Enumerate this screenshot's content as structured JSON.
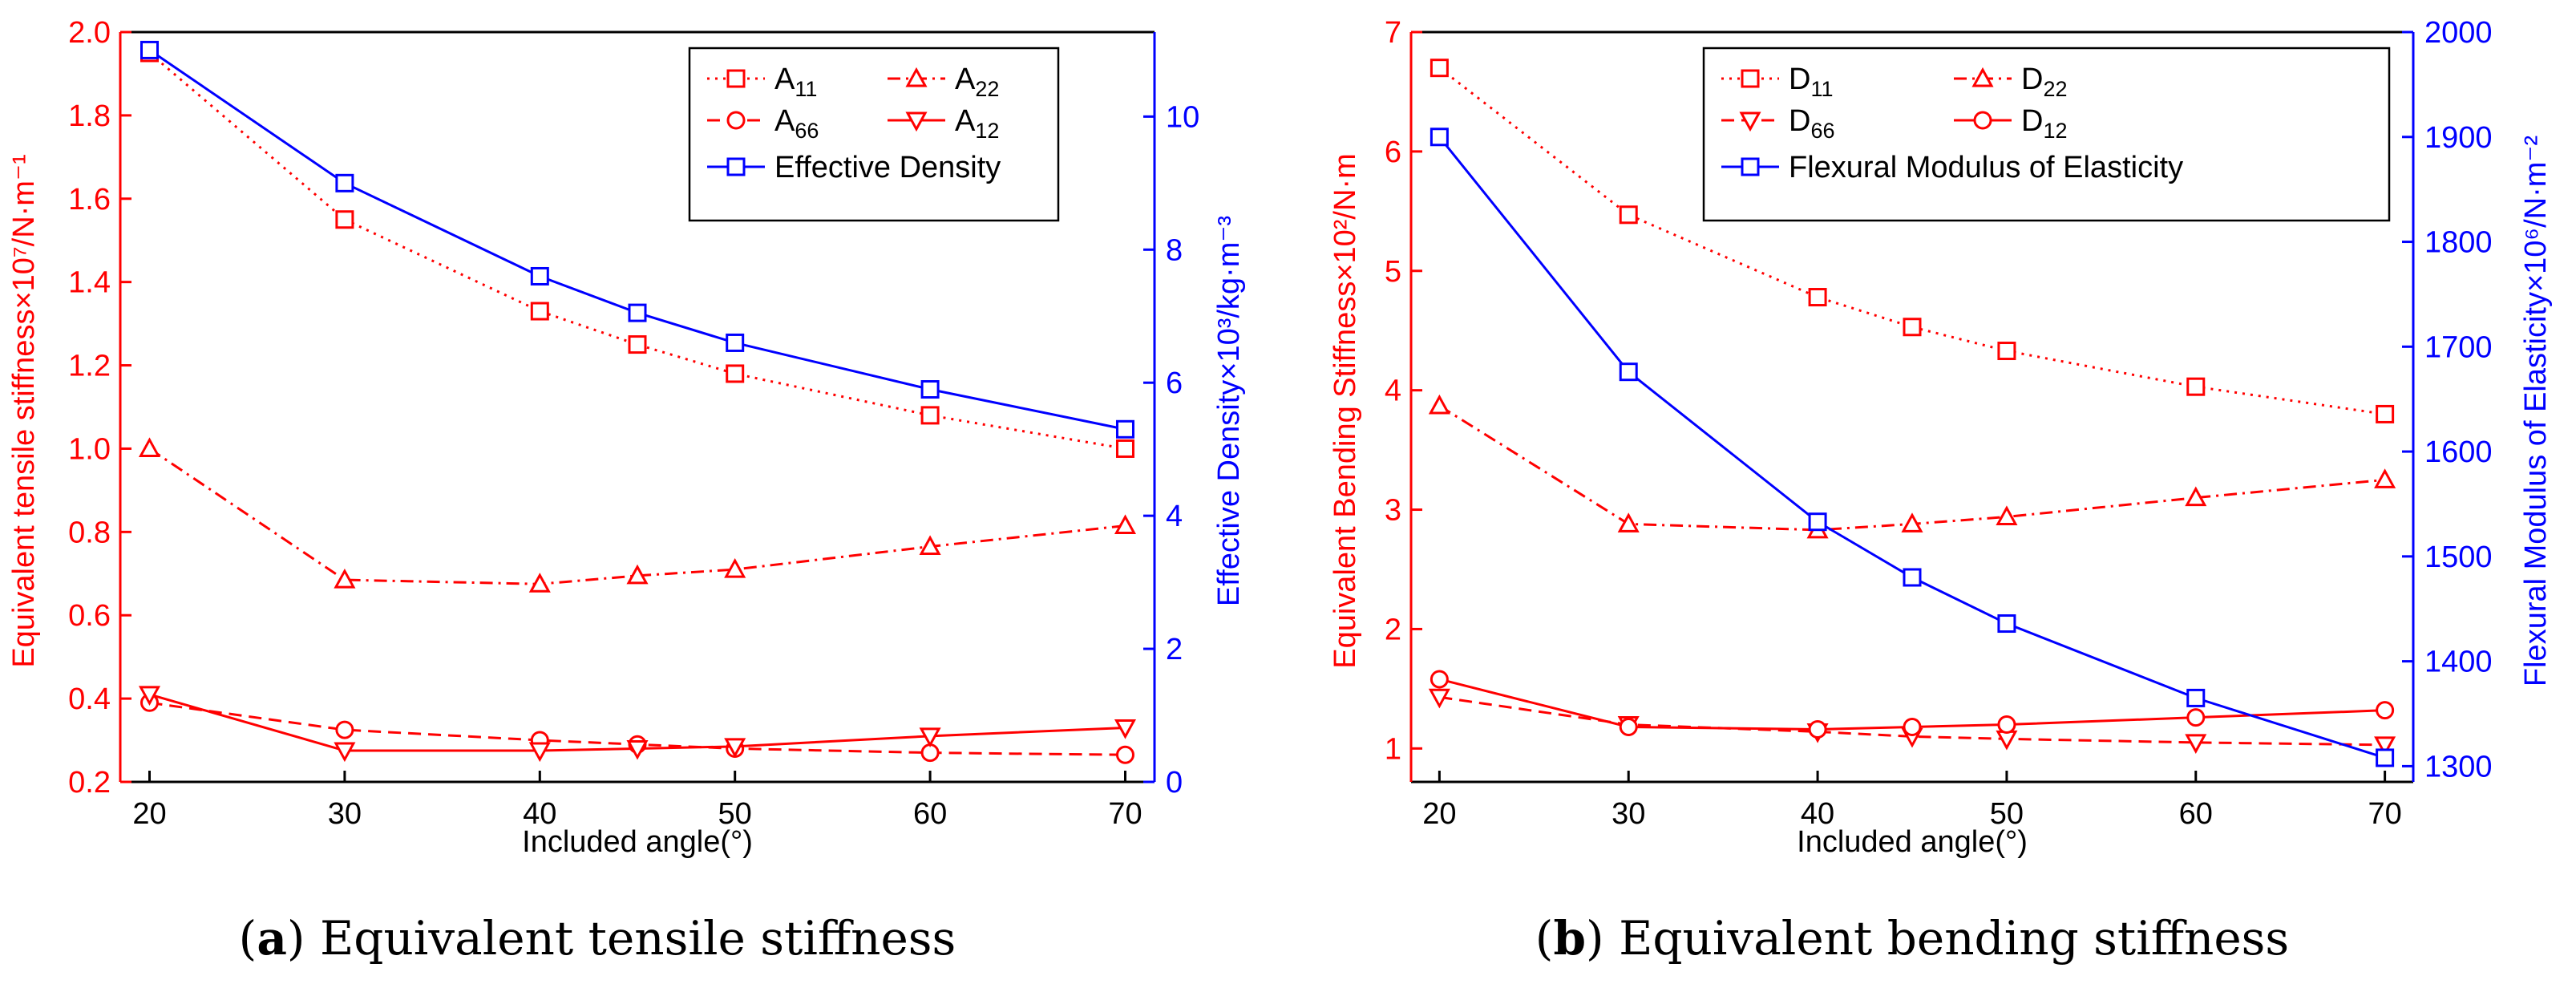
{
  "figure": {
    "caption_a_letter": "a",
    "caption_a_text": " Equivalent tensile stiffness",
    "caption_b_letter": "b",
    "caption_b_text": " Equivalent bending stiffness"
  },
  "colors": {
    "left_axis": "#ff0000",
    "right_axis": "#0000ff",
    "frame": "#000000"
  },
  "chart_data": [
    {
      "id": "a",
      "type": "line",
      "xlabel": "Included angle(°)",
      "ylabel_left": "Equivalent tensile stiffness×10⁷/N·m⁻¹",
      "ylabel_right": "Effective Density×10³/kg·m⁻³",
      "xlim": [
        18.5,
        71.5
      ],
      "ylim_left": [
        0.2,
        2.0
      ],
      "ylim_right": [
        0,
        11.27
      ],
      "xticks": [
        20,
        30,
        40,
        50,
        60,
        70
      ],
      "yticks_left": [
        0.2,
        0.4,
        0.6,
        0.8,
        1.0,
        1.2,
        1.4,
        1.6,
        1.8,
        2.0
      ],
      "yticks_left_labels": [
        "0.2",
        "0.4",
        "0.6",
        "0.8",
        "1.0",
        "1.2",
        "1.4",
        "1.6",
        "1.8",
        "2.0"
      ],
      "yticks_right": [
        0,
        2,
        4,
        6,
        8,
        10
      ],
      "grid": false,
      "legend_position": "top-right",
      "x": [
        20,
        30,
        40,
        45,
        50,
        60,
        70
      ],
      "series": [
        {
          "name": "A11",
          "label_main": "A",
          "label_sub": "11",
          "axis": "left",
          "marker": "square",
          "dash": "dot",
          "values": [
            1.95,
            1.55,
            1.33,
            1.25,
            1.18,
            1.08,
            1.0
          ]
        },
        {
          "name": "A22",
          "label_main": "A",
          "label_sub": "22",
          "axis": "left",
          "marker": "triangle-up",
          "dash": "dashdot",
          "values": [
            1.0,
            0.685,
            0.675,
            0.695,
            0.71,
            0.765,
            0.815
          ]
        },
        {
          "name": "A66",
          "label_main": "A",
          "label_sub": "66",
          "axis": "left",
          "marker": "circle",
          "dash": "dash",
          "values": [
            0.39,
            0.325,
            0.3,
            0.29,
            0.28,
            0.27,
            0.265
          ]
        },
        {
          "name": "A12",
          "label_main": "A",
          "label_sub": "12",
          "axis": "left",
          "marker": "triangle-down",
          "dash": "solid",
          "values": [
            0.41,
            0.275,
            0.275,
            0.28,
            0.285,
            0.31,
            0.33
          ]
        },
        {
          "name": "Effective Density",
          "label_main": "Effective Density",
          "label_sub": "",
          "axis": "right",
          "marker": "square",
          "dash": "solid",
          "values": [
            11.0,
            9.0,
            7.6,
            7.05,
            6.6,
            5.9,
            5.3
          ]
        }
      ]
    },
    {
      "id": "b",
      "type": "line",
      "xlabel": "Included angle(°)",
      "ylabel_left": "Equivalent Bending Stiffness×10²/N·m",
      "ylabel_right": "Flexural Modulus of Elasticity×10⁶/N·m⁻²",
      "xlim": [
        18.5,
        71.5
      ],
      "ylim_left": [
        0.72,
        7.0
      ],
      "ylim_right": [
        1285,
        2000
      ],
      "xticks": [
        20,
        30,
        40,
        50,
        60,
        70
      ],
      "yticks_left": [
        1,
        2,
        3,
        4,
        5,
        6,
        7
      ],
      "yticks_left_labels": [
        "1",
        "2",
        "3",
        "4",
        "5",
        "6",
        "7"
      ],
      "yticks_right": [
        1300,
        1400,
        1500,
        1600,
        1700,
        1800,
        1900,
        2000
      ],
      "grid": false,
      "legend_position": "top-right",
      "x": [
        20,
        30,
        40,
        45,
        50,
        60,
        70
      ],
      "series": [
        {
          "name": "D11",
          "label_main": "D",
          "label_sub": "11",
          "axis": "left",
          "marker": "square",
          "dash": "dot",
          "values": [
            6.7,
            5.47,
            4.78,
            4.53,
            4.33,
            4.03,
            3.8
          ]
        },
        {
          "name": "D22",
          "label_main": "D",
          "label_sub": "22",
          "axis": "left",
          "marker": "triangle-up",
          "dash": "dashdot",
          "values": [
            3.87,
            2.88,
            2.83,
            2.88,
            2.94,
            3.1,
            3.25
          ]
        },
        {
          "name": "D66",
          "label_main": "D",
          "label_sub": "66",
          "axis": "left",
          "marker": "triangle-down",
          "dash": "dash",
          "values": [
            1.43,
            1.2,
            1.14,
            1.1,
            1.08,
            1.05,
            1.03
          ]
        },
        {
          "name": "D12",
          "label_main": "D",
          "label_sub": "12",
          "axis": "left",
          "marker": "circle",
          "dash": "solid",
          "values": [
            1.58,
            1.18,
            1.16,
            1.18,
            1.2,
            1.26,
            1.32
          ]
        },
        {
          "name": "Flexural Modulus of Elasticity",
          "label_main": "Flexural Modulus of Elasticity",
          "label_sub": "",
          "axis": "right",
          "marker": "square",
          "dash": "solid",
          "values": [
            1900,
            1676,
            1533,
            1480,
            1436,
            1365,
            1308
          ]
        }
      ]
    }
  ]
}
